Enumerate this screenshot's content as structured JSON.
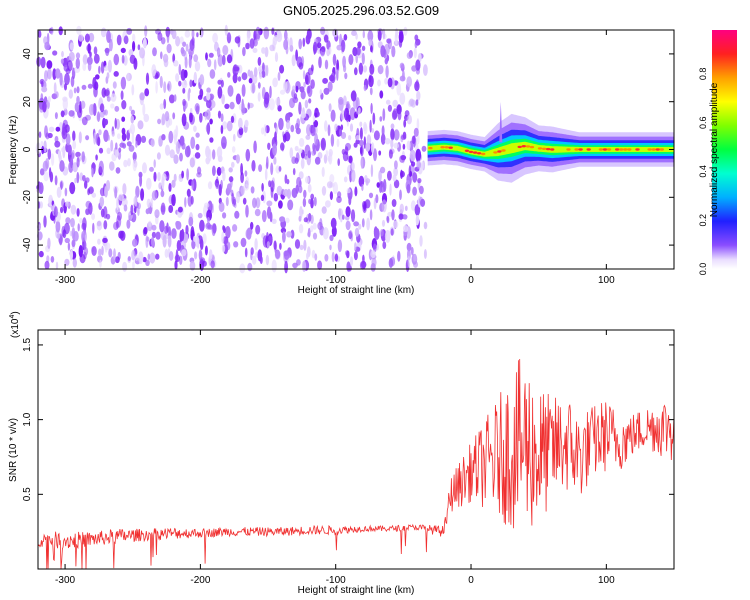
{
  "title": "GN05.2025.296.03.52.G09",
  "chart_data": [
    {
      "type": "heatmap",
      "xlabel": "Height of straight line (km)",
      "ylabel": "Frequency (Hz)",
      "xlim": [
        -320,
        150
      ],
      "ylim": [
        -50,
        50
      ],
      "xticks": [
        -300,
        -200,
        -100,
        0,
        100
      ],
      "yticks": [
        -40,
        -20,
        0,
        20,
        40
      ],
      "noise_region_x": [
        -320,
        -32
      ],
      "signal_band": {
        "x": [
          -32,
          -20,
          -10,
          0,
          10,
          20,
          30,
          40,
          50,
          60,
          80,
          100,
          120,
          150
        ],
        "center_hz": [
          0.5,
          1.0,
          0.5,
          -1.0,
          -2.0,
          -1.0,
          0.5,
          1.5,
          0.5,
          0.0,
          0.0,
          0.0,
          0.0,
          0.0
        ],
        "half_width_hz": [
          3,
          3,
          3,
          3,
          3,
          5,
          6,
          5,
          4,
          4,
          3,
          3,
          3,
          3
        ]
      },
      "spike": {
        "x": 22,
        "peak_hz": 20
      },
      "colorbar": {
        "label": "Normalized spectral amplitude",
        "range": [
          0,
          1
        ],
        "ticks": [
          "0.0",
          "0.2",
          "0.4",
          "0.6",
          "0.8"
        ]
      },
      "grid": false
    },
    {
      "type": "line",
      "xlabel": "Height of straight line (km)",
      "ylabel": "SNR (10 * v/v)",
      "y_scale_label": "(x10",
      "y_scale_exp": "4",
      "xlim": [
        -320,
        150
      ],
      "ylim": [
        0,
        1.6
      ],
      "xticks": [
        -300,
        -200,
        -100,
        0,
        100
      ],
      "yticks": [
        "0.5",
        "1.0",
        "1.5"
      ],
      "series": [
        {
          "color": "#f03030",
          "envelope": {
            "x": [
              -320,
              -300,
              -280,
              -260,
              -240,
              -220,
              -200,
              -180,
              -160,
              -140,
              -120,
              -100,
              -80,
              -60,
              -40,
              -20,
              -15,
              -10,
              0,
              10,
              20,
              30,
              40,
              50,
              60,
              70,
              80,
              90,
              100,
              110,
              120,
              130,
              140,
              150
            ],
            "mean": [
              0.2,
              0.19,
              0.2,
              0.22,
              0.23,
              0.24,
              0.24,
              0.25,
              0.25,
              0.25,
              0.26,
              0.26,
              0.27,
              0.27,
              0.28,
              0.25,
              0.5,
              0.55,
              0.65,
              0.7,
              0.75,
              0.8,
              0.85,
              0.75,
              0.8,
              0.85,
              0.75,
              0.85,
              0.9,
              0.85,
              0.9,
              0.95,
              0.95,
              0.95
            ],
            "amp": [
              0.05,
              0.06,
              0.05,
              0.05,
              0.04,
              0.04,
              0.03,
              0.03,
              0.03,
              0.03,
              0.03,
              0.03,
              0.02,
              0.02,
              0.02,
              0.04,
              0.12,
              0.15,
              0.2,
              0.3,
              0.4,
              0.55,
              0.6,
              0.5,
              0.35,
              0.35,
              0.3,
              0.25,
              0.25,
              0.2,
              0.15,
              0.15,
              0.2,
              0.25
            ]
          }
        }
      ],
      "grid": false
    }
  ]
}
